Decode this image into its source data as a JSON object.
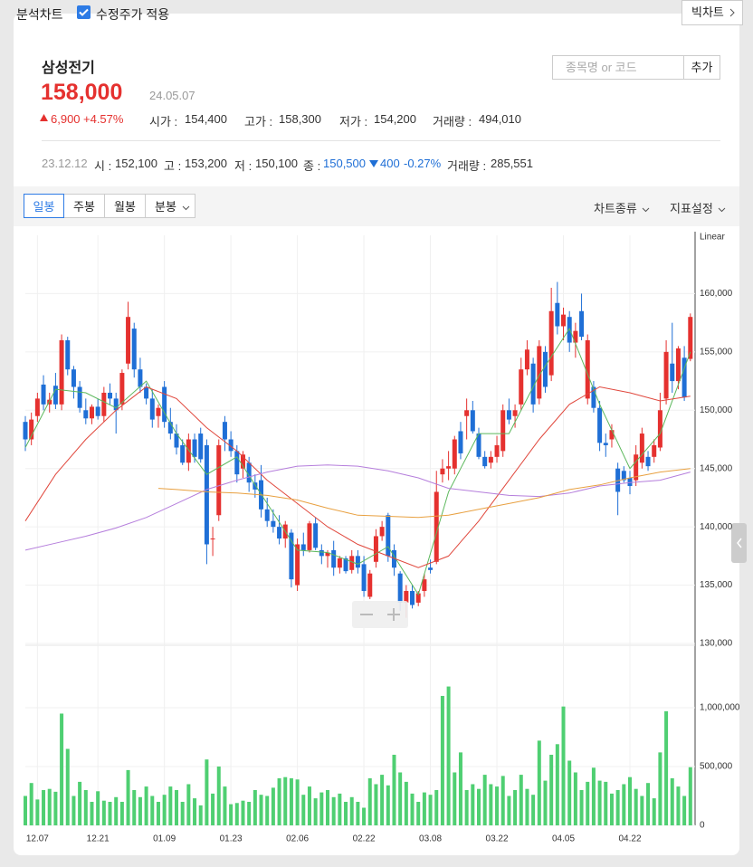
{
  "top_bar": {
    "title": "분석차트",
    "checkbox_label": "수정주가 적용",
    "big_chart": "빅차트"
  },
  "header": {
    "name": "삼성전기",
    "price": "158,000",
    "date": "24.05.07",
    "change": "6,900",
    "change_pct": "+4.57%",
    "open_label": "시가 :",
    "open": "154,400",
    "high_label": "고가 :",
    "high": "158,300",
    "low_label": "저가 :",
    "low": "154,200",
    "volume_label": "거래량 :",
    "volume": "494,010",
    "search_placeholder": "종목명 or 코드",
    "add": "추가"
  },
  "hover": {
    "date": "23.12.12",
    "open_label": "시 :",
    "open": "152,100",
    "high_label": "고 :",
    "high": "153,200",
    "low_label": "저 :",
    "low": "150,100",
    "close_label": "종 :",
    "close": "150,500",
    "change": "400",
    "change_pct": "-0.27%",
    "volume_label": "거래량 :",
    "volume": "285,551"
  },
  "toolbar": {
    "periods": [
      "일봉",
      "주봉",
      "월봉",
      "분봉"
    ],
    "chart_type": "차트종류",
    "indicators": "지표설정"
  },
  "chart_data": [
    {
      "type": "candlestick",
      "scale_label": "Linear",
      "up_color": "#e5312f",
      "down_color": "#1f6fd6",
      "grid": true,
      "ylim": [
        130000,
        165000
      ],
      "yticks": [
        {
          "value": 130000,
          "label": "130,000"
        },
        {
          "value": 135000,
          "label": "135,000"
        },
        {
          "value": 140000,
          "label": "140,000"
        },
        {
          "value": 145000,
          "label": "145,000"
        },
        {
          "value": 150000,
          "label": "150,000"
        },
        {
          "value": 155000,
          "label": "155,000"
        },
        {
          "value": 160000,
          "label": "160,000"
        }
      ],
      "ohlc": [
        [
          149000,
          149500,
          146500,
          147500
        ],
        [
          147500,
          149800,
          147000,
          149200
        ],
        [
          149500,
          151500,
          149000,
          151000
        ],
        [
          152200,
          153000,
          150000,
          150500
        ],
        [
          150500,
          151500,
          149800,
          150900
        ],
        [
          152100,
          153200,
          150100,
          150500
        ],
        [
          150500,
          156500,
          150000,
          156000
        ],
        [
          156000,
          156300,
          153000,
          153500
        ],
        [
          153500,
          153800,
          151000,
          152000
        ],
        [
          152000,
          152500,
          149800,
          150200
        ],
        [
          150000,
          151000,
          148800,
          149300
        ],
        [
          149300,
          150500,
          148800,
          150300
        ],
        [
          150300,
          151000,
          149200,
          149500
        ],
        [
          149500,
          152000,
          149000,
          151500
        ],
        [
          151500,
          152300,
          150500,
          151000
        ],
        [
          151000,
          151500,
          148000,
          150000
        ],
        [
          150500,
          153500,
          150000,
          153200
        ],
        [
          154000,
          159300,
          153500,
          158000
        ],
        [
          157000,
          157500,
          152800,
          153500
        ],
        [
          153500,
          154500,
          151500,
          152000
        ],
        [
          152000,
          152300,
          150500,
          151000
        ],
        [
          151000,
          151800,
          148500,
          149200
        ],
        [
          149500,
          150500,
          148500,
          150200
        ],
        [
          152000,
          152500,
          148500,
          149000
        ],
        [
          149000,
          150200,
          147500,
          148000
        ],
        [
          148000,
          148800,
          146200,
          146800
        ],
        [
          147000,
          147500,
          145300,
          145500
        ],
        [
          145500,
          148000,
          144800,
          147500
        ],
        [
          147500,
          148000,
          145500,
          146000
        ],
        [
          148000,
          148500,
          145500,
          145800
        ],
        [
          147000,
          147500,
          136800,
          138500
        ],
        [
          139000,
          140000,
          137500,
          139000
        ],
        [
          141000,
          147500,
          140500,
          147000
        ],
        [
          149000,
          149500,
          146500,
          147500
        ],
        [
          147500,
          148200,
          146000,
          146500
        ],
        [
          146500,
          147000,
          143800,
          144500
        ],
        [
          145000,
          146500,
          144200,
          146200
        ],
        [
          145500,
          146000,
          143000,
          143800
        ],
        [
          143800,
          144500,
          142500,
          143200
        ],
        [
          144000,
          145300,
          140800,
          141500
        ],
        [
          141500,
          142500,
          140000,
          140500
        ],
        [
          140500,
          141500,
          139500,
          140000
        ],
        [
          140000,
          141000,
          138500,
          139000
        ],
        [
          139000,
          140500,
          138200,
          140200
        ],
        [
          139500,
          139800,
          134800,
          135500
        ],
        [
          135000,
          139000,
          134500,
          138500
        ],
        [
          138500,
          139500,
          137500,
          138000
        ],
        [
          138000,
          140500,
          137800,
          140300
        ],
        [
          140300,
          140800,
          138000,
          138200
        ],
        [
          138000,
          138500,
          136800,
          137500
        ],
        [
          137500,
          138000,
          136500,
          137800
        ],
        [
          138000,
          138800,
          135800,
          136500
        ],
        [
          136500,
          137500,
          136000,
          137300
        ],
        [
          137300,
          137500,
          136000,
          136200
        ],
        [
          136300,
          138000,
          136000,
          137500
        ],
        [
          137500,
          138000,
          136000,
          136500
        ],
        [
          136800,
          137500,
          134000,
          134500
        ],
        [
          134000,
          136300,
          133800,
          136000
        ],
        [
          137000,
          139800,
          136500,
          139200
        ],
        [
          139200,
          140500,
          138800,
          140000
        ],
        [
          141000,
          141200,
          137000,
          137500
        ],
        [
          138000,
          138500,
          135800,
          136500
        ],
        [
          136000,
          136200,
          132800,
          133500
        ],
        [
          133500,
          135000,
          132200,
          134500
        ],
        [
          134500,
          135000,
          133000,
          133300
        ],
        [
          133500,
          134500,
          133200,
          134300
        ],
        [
          134500,
          136000,
          134000,
          135500
        ],
        [
          136500,
          137200,
          136000,
          136300
        ],
        [
          137000,
          144800,
          136800,
          143000
        ],
        [
          144500,
          145800,
          143800,
          145000
        ],
        [
          145000,
          146500,
          144000,
          145200
        ],
        [
          145000,
          147800,
          144500,
          147500
        ],
        [
          148200,
          149000,
          145800,
          146300
        ],
        [
          149500,
          151000,
          147500,
          150000
        ],
        [
          150000,
          150800,
          148000,
          148200
        ],
        [
          148000,
          148500,
          145800,
          146000
        ],
        [
          146000,
          146500,
          145000,
          145200
        ],
        [
          145500,
          146500,
          145000,
          146000
        ],
        [
          146000,
          147800,
          145500,
          147000
        ],
        [
          146500,
          150500,
          146000,
          150000
        ],
        [
          150000,
          151000,
          148800,
          149200
        ],
        [
          149500,
          150500,
          148500,
          150000
        ],
        [
          150500,
          154500,
          150000,
          153500
        ],
        [
          153500,
          156000,
          153000,
          155200
        ],
        [
          154000,
          154500,
          149800,
          150500
        ],
        [
          151000,
          156000,
          150500,
          155500
        ],
        [
          155000,
          155500,
          151500,
          152000
        ],
        [
          153000,
          160500,
          152500,
          158500
        ],
        [
          159200,
          161000,
          156500,
          157200
        ],
        [
          157200,
          158800,
          156000,
          158200
        ],
        [
          158000,
          158500,
          155000,
          155800
        ],
        [
          155800,
          157500,
          154500,
          156800
        ],
        [
          158500,
          160000,
          156000,
          156300
        ],
        [
          151000,
          156500,
          150500,
          156000
        ],
        [
          152000,
          152500,
          149800,
          150200
        ],
        [
          150200,
          150800,
          146500,
          147200
        ],
        [
          147200,
          148000,
          146000,
          147000
        ],
        [
          147500,
          148800,
          146800,
          148300
        ],
        [
          145000,
          145500,
          141000,
          143000
        ],
        [
          144800,
          145200,
          143800,
          144000
        ],
        [
          144200,
          144800,
          142800,
          143500
        ],
        [
          144000,
          147000,
          143500,
          146200
        ],
        [
          145500,
          148500,
          145000,
          148000
        ],
        [
          146000,
          146500,
          144800,
          145200
        ],
        [
          146000,
          147500,
          145500,
          147000
        ],
        [
          146800,
          151500,
          146500,
          150000
        ],
        [
          151000,
          156000,
          150500,
          155000
        ],
        [
          154000,
          157500,
          151500,
          152500
        ],
        [
          152500,
          155500,
          151800,
          155300
        ],
        [
          154500,
          155500,
          150800,
          151100
        ],
        [
          154400,
          158300,
          154200,
          158000
        ]
      ],
      "lines": [
        {
          "color": "#5cb85c",
          "x": [
            0,
            5,
            10,
            15,
            20,
            25,
            30,
            35,
            40,
            45,
            50,
            55,
            60,
            65,
            70,
            75,
            80,
            85,
            90,
            95,
            100,
            105,
            110
          ],
          "values": [
            146800,
            151800,
            151500,
            150200,
            152500,
            148000,
            144500,
            146000,
            142000,
            138000,
            137800,
            136800,
            138300,
            134200,
            143000,
            148000,
            148000,
            153000,
            157000,
            150500,
            145000,
            148000,
            155000
          ]
        },
        {
          "color": "#e0473c",
          "x": [
            0,
            5,
            10,
            15,
            20,
            25,
            30,
            35,
            40,
            45,
            50,
            55,
            60,
            65,
            70,
            75,
            80,
            85,
            90,
            95,
            100,
            105,
            110
          ],
          "values": [
            140500,
            144500,
            147500,
            150000,
            152000,
            151000,
            148500,
            146500,
            144000,
            142000,
            140000,
            138500,
            137500,
            136500,
            137500,
            140500,
            144000,
            147500,
            150500,
            152000,
            151500,
            150800,
            151200
          ]
        },
        {
          "color": "#b57edc",
          "x": [
            0,
            5,
            10,
            15,
            20,
            25,
            30,
            35,
            40,
            45,
            50,
            55,
            60,
            65,
            70,
            75,
            80,
            85,
            90,
            95,
            100,
            105,
            110
          ],
          "values": [
            138000,
            138600,
            139200,
            139900,
            140800,
            142000,
            143200,
            144000,
            144700,
            145200,
            145300,
            145200,
            144800,
            144200,
            143300,
            143000,
            142700,
            142600,
            142900,
            143500,
            143800,
            144000,
            144700
          ]
        },
        {
          "color": "#e8a040",
          "x": [
            22,
            25,
            30,
            35,
            40,
            45,
            50,
            55,
            60,
            65,
            70,
            75,
            80,
            85,
            90,
            95,
            100,
            105,
            110
          ],
          "values": [
            143300,
            143200,
            143000,
            142900,
            142700,
            142300,
            141600,
            141000,
            140900,
            140800,
            141000,
            141500,
            142000,
            142500,
            143200,
            143600,
            144200,
            144700,
            145000
          ]
        }
      ]
    },
    {
      "type": "bar",
      "color": "#4fcf72",
      "grid": true,
      "ylim": [
        0,
        1515000
      ],
      "yticks": [
        0,
        {
          "value": 500000,
          "label": "500,000"
        },
        {
          "value": 1000000,
          "label": "1,000,000"
        }
      ],
      "categories": [
        null,
        null,
        "12.07",
        null,
        null,
        null,
        null,
        null,
        null,
        null,
        null,
        null,
        "12.21",
        null,
        null,
        null,
        null,
        null,
        null,
        null,
        null,
        null,
        null,
        "01.09",
        null,
        null,
        null,
        null,
        null,
        null,
        null,
        null,
        null,
        null,
        "01.23",
        null,
        null,
        null,
        null,
        null,
        null,
        null,
        null,
        null,
        null,
        "02.06",
        null,
        null,
        null,
        null,
        null,
        null,
        null,
        null,
        null,
        null,
        "02.22",
        null,
        null,
        null,
        null,
        null,
        null,
        null,
        null,
        null,
        null,
        "03.08",
        null,
        null,
        null,
        null,
        null,
        null,
        null,
        null,
        null,
        null,
        "03.22",
        null,
        null,
        null,
        null,
        null,
        null,
        null,
        null,
        null,
        null,
        "04.05",
        null,
        null,
        null,
        null,
        null,
        null,
        null,
        null,
        null,
        null,
        "04.22",
        null,
        null,
        null,
        null,
        null,
        null,
        null,
        null,
        null,
        null
      ],
      "values": [
        250000,
        360000,
        220000,
        300000,
        310000,
        285551,
        950000,
        650000,
        250000,
        370000,
        300000,
        200000,
        290000,
        210000,
        200000,
        240000,
        200000,
        470000,
        300000,
        240000,
        330000,
        250000,
        200000,
        260000,
        330000,
        300000,
        200000,
        350000,
        230000,
        170000,
        560000,
        270000,
        500000,
        330000,
        180000,
        190000,
        210000,
        200000,
        300000,
        260000,
        250000,
        320000,
        400000,
        410000,
        400000,
        390000,
        260000,
        330000,
        230000,
        280000,
        300000,
        240000,
        270000,
        200000,
        240000,
        200000,
        150000,
        400000,
        350000,
        430000,
        340000,
        600000,
        450000,
        370000,
        270000,
        200000,
        280000,
        260000,
        300000,
        1100000,
        1180000,
        450000,
        620000,
        300000,
        350000,
        310000,
        430000,
        350000,
        330000,
        420000,
        250000,
        300000,
        430000,
        310000,
        260000,
        720000,
        380000,
        600000,
        690000,
        1010000,
        550000,
        450000,
        300000,
        370000,
        490000,
        380000,
        370000,
        270000,
        300000,
        350000,
        410000,
        310000,
        250000,
        360000,
        230000,
        620000,
        970000,
        400000,
        330000,
        250000,
        494010
      ]
    }
  ]
}
